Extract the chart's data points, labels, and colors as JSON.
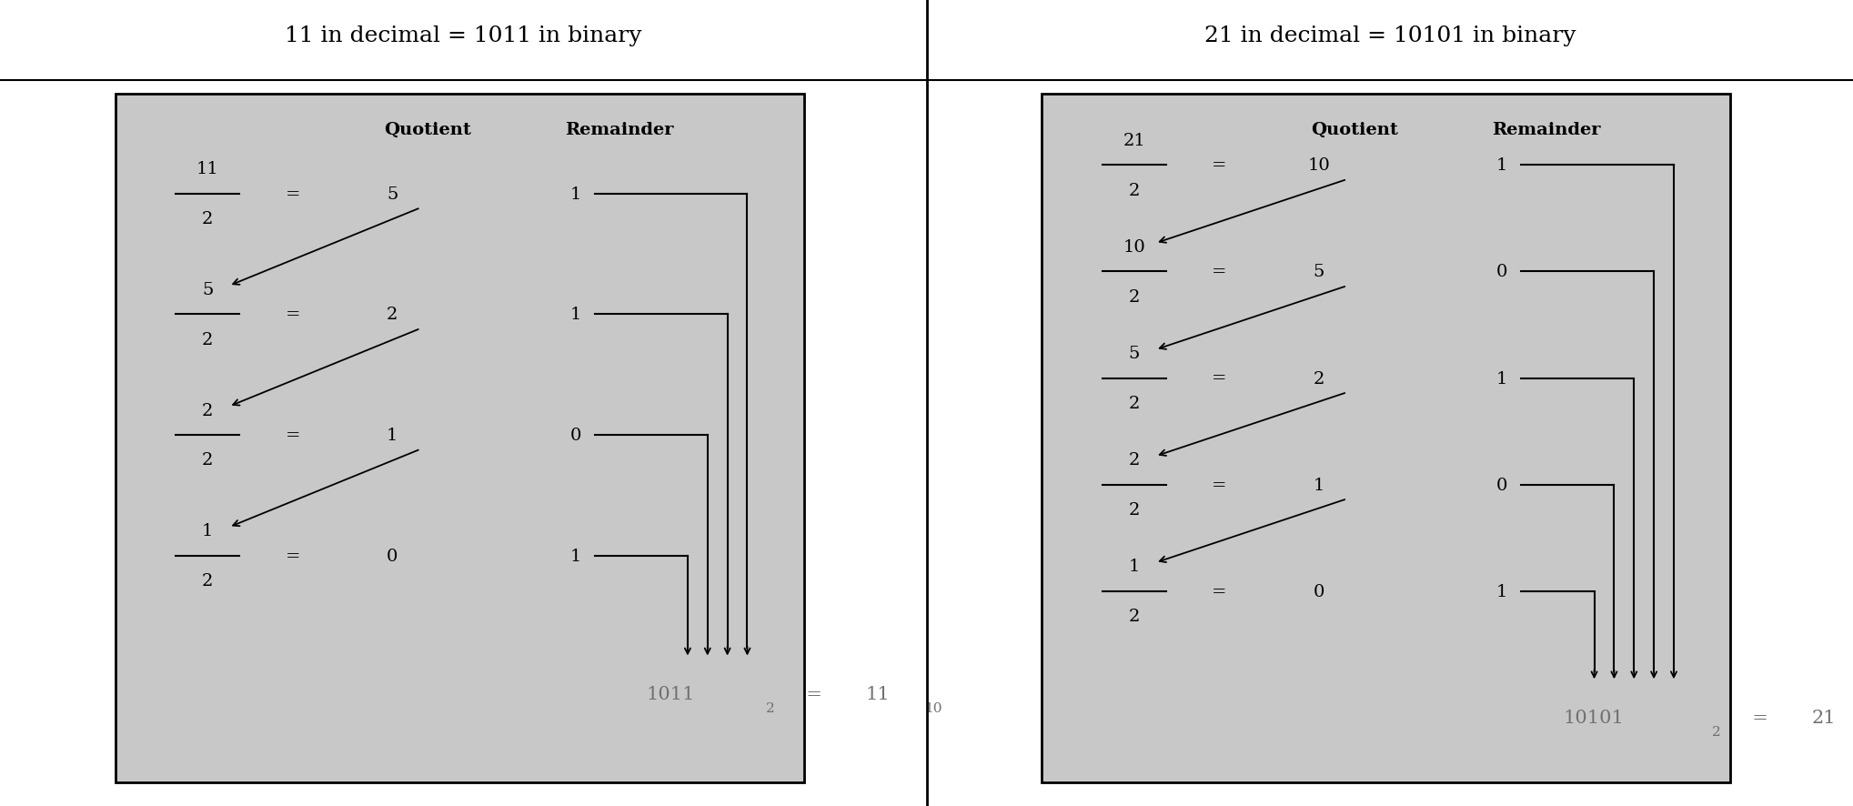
{
  "bg_color": "#c8c8c8",
  "panel_bg": "#c8c8c8",
  "text_color": "#000000",
  "fig_bg": "#ffffff",
  "title1": "11 in decimal = 1011 in binary",
  "title2": "21 in decimal = 10101 in binary",
  "panel1": {
    "rows": [
      {
        "num": "11",
        "denom": "2",
        "quot": "5",
        "rem": "1"
      },
      {
        "num": "5",
        "denom": "2",
        "quot": "2",
        "rem": "1"
      },
      {
        "num": "2",
        "denom": "2",
        "quot": "1",
        "rem": "0"
      },
      {
        "num": "1",
        "denom": "2",
        "quot": "0",
        "rem": "1"
      }
    ],
    "result_binary": "1011",
    "result_decimal": "11"
  },
  "panel2": {
    "rows": [
      {
        "num": "21",
        "denom": "2",
        "quot": "10",
        "rem": "1"
      },
      {
        "num": "10",
        "denom": "2",
        "quot": "5",
        "rem": "0"
      },
      {
        "num": "5",
        "denom": "2",
        "quot": "2",
        "rem": "1"
      },
      {
        "num": "2",
        "denom": "2",
        "quot": "1",
        "rem": "0"
      },
      {
        "num": "1",
        "denom": "2",
        "quot": "0",
        "rem": "1"
      }
    ],
    "result_binary": "10101",
    "result_decimal": "21"
  }
}
